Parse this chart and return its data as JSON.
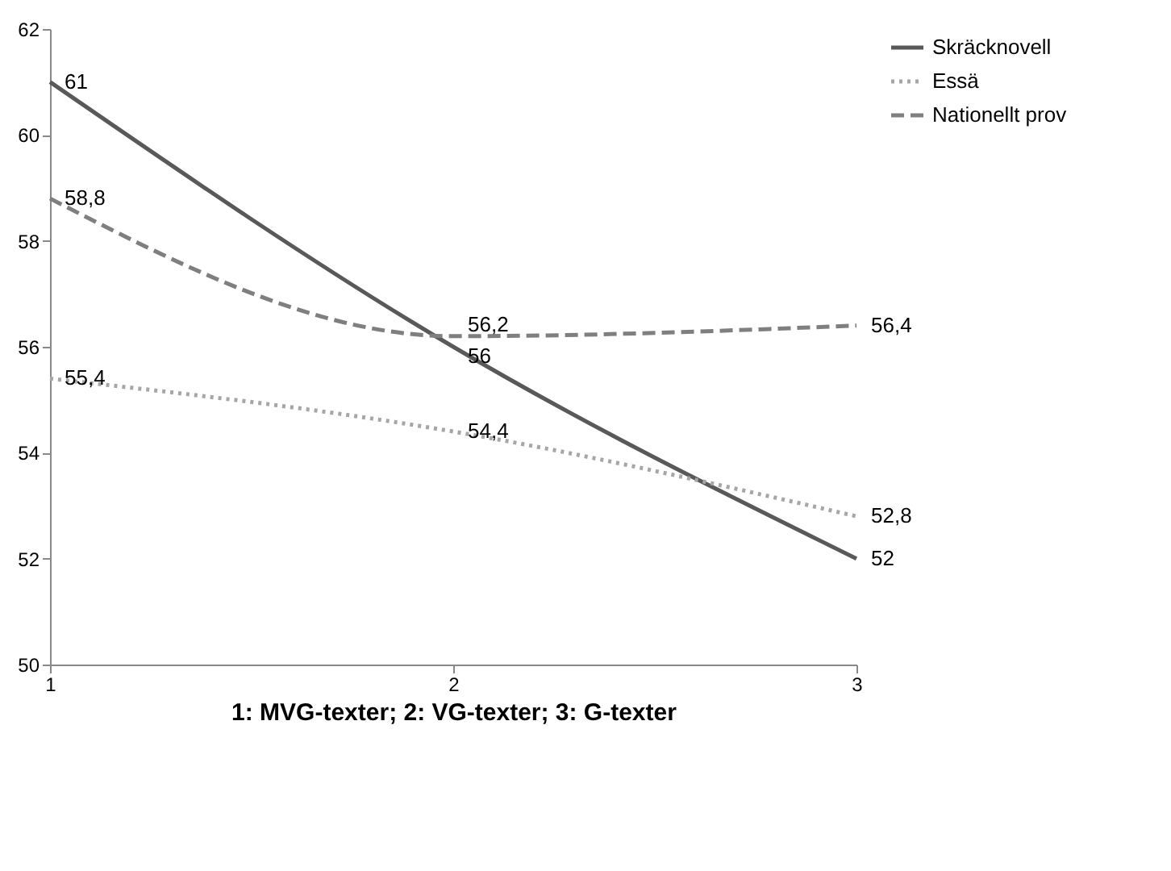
{
  "chart_data": {
    "type": "line",
    "xlabel": "1: MVG-texter; 2: VG-texter; 3: G-texter",
    "x": [
      1,
      2,
      3
    ],
    "xlim": [
      1,
      3
    ],
    "xticks": [
      1,
      2,
      3
    ],
    "ylim": [
      50,
      62
    ],
    "yticks": [
      50,
      52,
      54,
      56,
      58,
      60,
      62
    ],
    "grid": false,
    "legend": "top right",
    "marker": "none",
    "series": [
      {
        "name": "Skräcknovell",
        "color": "#595959",
        "line_style": "solid",
        "values": [
          61,
          56,
          52
        ],
        "value_labels": [
          "61",
          "56",
          "52"
        ]
      },
      {
        "name": "Essä",
        "color": "#a6a6a6",
        "line_style": "dotted",
        "values": [
          55.4,
          54.4,
          52.8
        ],
        "value_labels": [
          "55,4",
          "54,4",
          "52,8"
        ]
      },
      {
        "name": "Nationellt prov",
        "color": "#7f7f7f",
        "line_style": "dashed",
        "values": [
          58.8,
          56.2,
          56.4
        ],
        "value_labels": [
          "58,8",
          "56,2",
          "56,4"
        ]
      }
    ]
  }
}
